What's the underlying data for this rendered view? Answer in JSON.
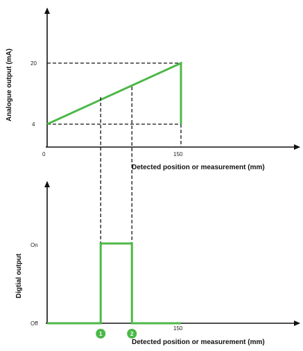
{
  "colors": {
    "axis": "#111111",
    "signal": "#4cb848",
    "guides": "#111111",
    "marker_fill": "#4cb848",
    "marker_text": "#ffffff"
  },
  "chart_data": [
    {
      "type": "line",
      "ylabel": "Analogue output (mA)",
      "xlabel": "Detected position or measurement (mm)",
      "x_ticks": [
        "0",
        "150"
      ],
      "y_ticks": [
        "4",
        "20"
      ],
      "xlim": [
        0,
        150
      ],
      "ylim": [
        4,
        20
      ],
      "series": [
        {
          "x": [
            0,
            150,
            150
          ],
          "y": [
            4,
            20,
            4
          ]
        }
      ]
    },
    {
      "type": "line",
      "ylabel": "Digtial output",
      "xlabel": "Detected position or measurement (mm)",
      "x_ticks": [
        "150"
      ],
      "y_ticks": [
        "On",
        "Off"
      ],
      "xlim": [
        0,
        150
      ],
      "series": [
        {
          "x": [
            0,
            60,
            60,
            95,
            95,
            150
          ],
          "y": [
            "Off",
            "Off",
            "On",
            "On",
            "Off",
            "Off"
          ]
        }
      ],
      "markers": [
        {
          "label": "1",
          "x": 60
        },
        {
          "label": "2",
          "x": 95
        }
      ]
    }
  ]
}
